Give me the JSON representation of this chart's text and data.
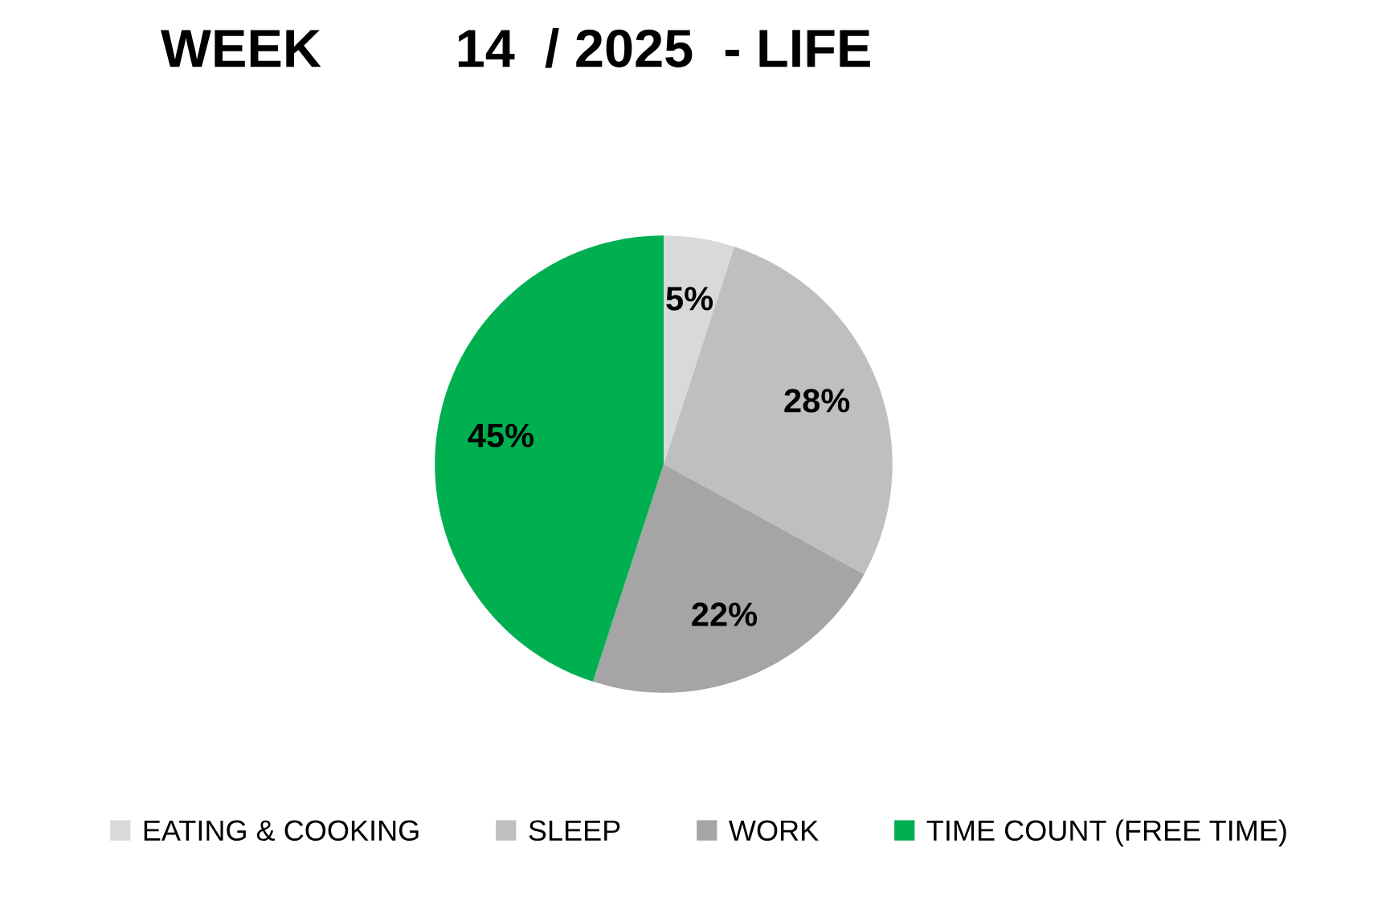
{
  "chart_data": {
    "type": "pie",
    "title": "WEEK         14  / 2025  - LIFE",
    "categories": [
      "EATING & COOKING",
      "SLEEP",
      "WORK",
      "TIME COUNT (FREE TIME)"
    ],
    "values": [
      5,
      28,
      22,
      45
    ],
    "colors": [
      "#d9d9d9",
      "#bfbfbf",
      "#a5a5a5",
      "#00b050"
    ],
    "value_labels": [
      "5%",
      "28%",
      "22%",
      "45%"
    ],
    "legend": "bottom"
  }
}
